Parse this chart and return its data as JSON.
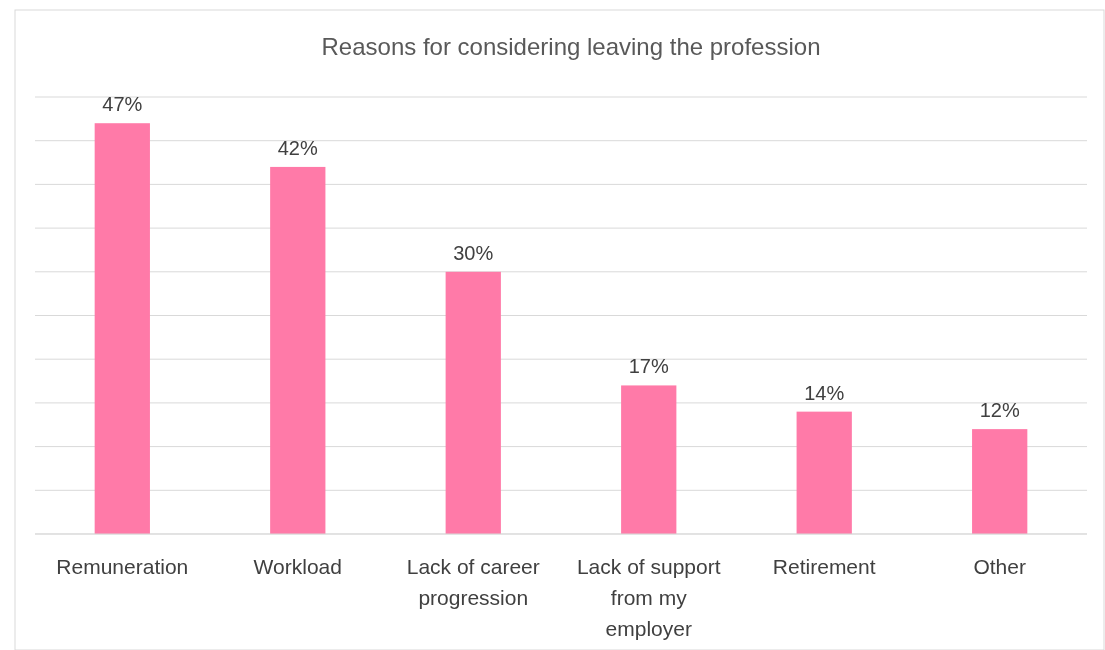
{
  "chart_data": {
    "type": "bar",
    "title": "Reasons for considering leaving the profession",
    "categories": [
      "Remuneration",
      "Workload",
      "Lack of career progression",
      "Lack of support from my employer",
      "Retirement",
      "Other"
    ],
    "values": [
      47,
      42,
      30,
      17,
      14,
      12
    ],
    "value_labels": [
      "47%",
      "42%",
      "30%",
      "17%",
      "14%",
      "12%"
    ],
    "color": "#ff7aa8",
    "ylim": [
      0,
      50
    ],
    "yticks": [
      {
        "value": 0,
        "label": null
      },
      {
        "value": 5,
        "label": null
      },
      {
        "value": 10,
        "label": null
      },
      {
        "value": 15,
        "label": null
      },
      {
        "value": 20,
        "label": null
      },
      {
        "value": 25,
        "label": null
      },
      {
        "value": 30,
        "label": null
      },
      {
        "value": 35,
        "label": null
      },
      {
        "value": 40,
        "label": null
      },
      {
        "value": 45,
        "label": null
      },
      {
        "value": 50,
        "label": null
      }
    ],
    "tick_labels": "x",
    "grid": "y"
  }
}
